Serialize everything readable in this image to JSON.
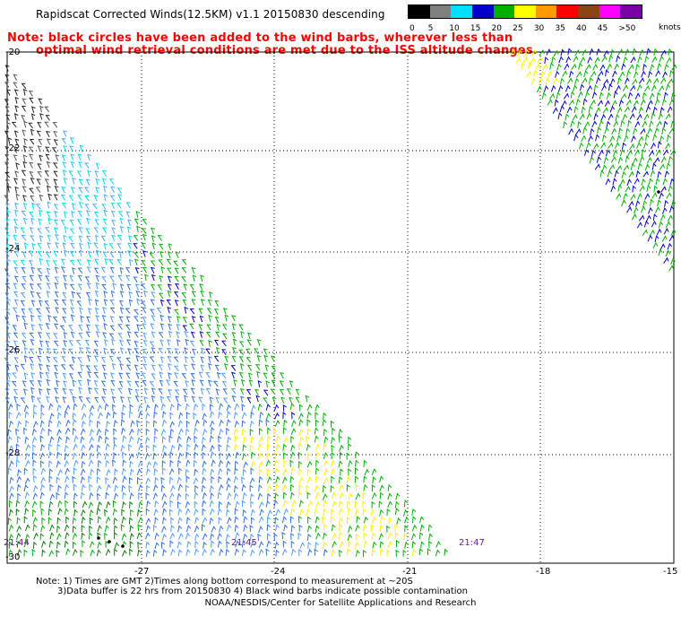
{
  "title": "Rapidscat Corrected Winds(12.5KM) v1.1 20150830 descending",
  "note": {
    "line1": "Note: black circles have been added to the wind barbs, wherever less than",
    "line2": "optimal wind retrieval conditions are met due to the ISS altitude changes."
  },
  "legend": {
    "unit": "knots",
    "labels": [
      "0",
      "5",
      "10",
      "15",
      "20",
      "25",
      "30",
      "35",
      "40",
      "45",
      ">50"
    ],
    "colors": [
      "#000000",
      "#808080",
      "#00e0ff",
      "#0000c8",
      "#00b000",
      "#ffff00",
      "#ff9900",
      "#ff0000",
      "#8b4513",
      "#ff00ff",
      "#7a00a8"
    ]
  },
  "map": {
    "lat_labels": [
      "-20",
      "-22",
      "-24",
      "-26",
      "-28",
      "-30"
    ],
    "lon_labels": [
      "-27",
      "-24",
      "-21",
      "-18",
      "-15"
    ],
    "pass_times": [
      "21:44",
      "21:45",
      "21:47"
    ]
  },
  "footnote": {
    "line1": "Note: 1) Times are GMT 2)Times along bottom correspond to measurement at ~20S",
    "line2": "3)Data buffer is 22 hrs from 20150830 4) Black wind barbs indicate possible contamination"
  },
  "credit": "NOAA/NESDIS/Center for Satellite Applications and Research"
}
